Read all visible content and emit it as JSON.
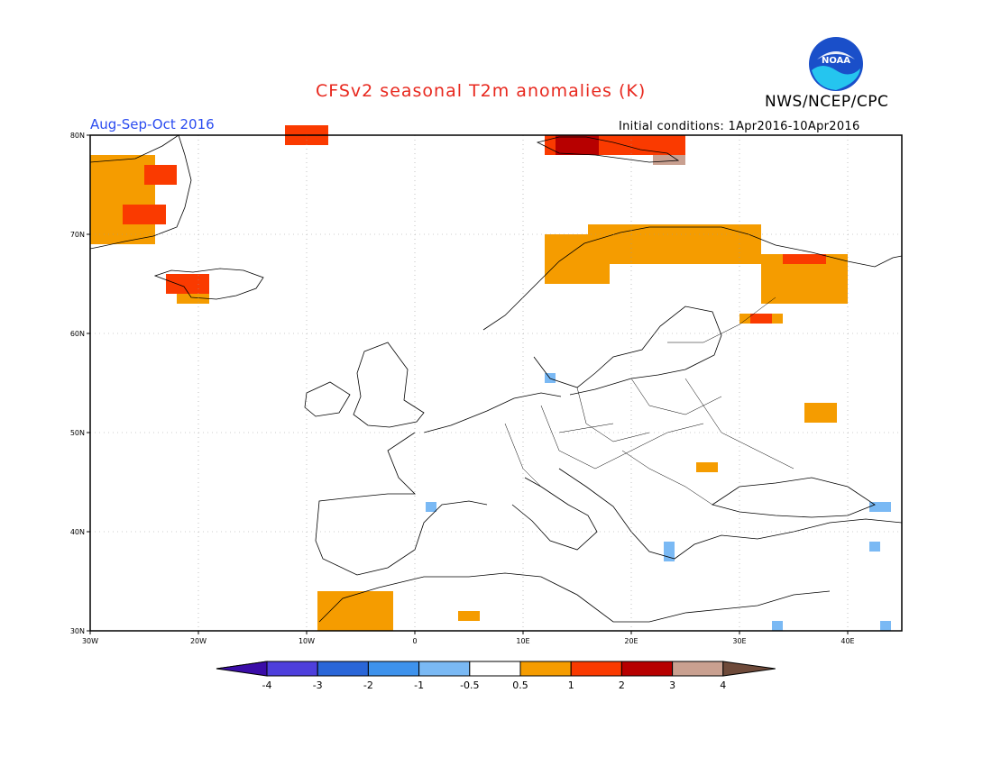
{
  "title": "CFSv2 seasonal T2m anomalies (K)",
  "agency": "NWS/NCEP/CPC",
  "season": "Aug-Sep-Oct 2016",
  "initial_conditions": "Initial conditions: 1Apr2016-10Apr2016",
  "logo_text": "NOAA",
  "logo_icon": "noaa-logo-icon",
  "axes": {
    "lat_labels": [
      "80N",
      "70N",
      "60N",
      "50N",
      "40N",
      "30N"
    ],
    "lon_labels": [
      "30W",
      "20W",
      "10W",
      "0",
      "10E",
      "20E",
      "30E",
      "40E"
    ]
  },
  "colorbar": {
    "labels": [
      "-4",
      "-3",
      "-2",
      "-1",
      "-0.5",
      "0.5",
      "1",
      "2",
      "3",
      "4"
    ],
    "colors": [
      "#3b0da8",
      "#4e3fdc",
      "#2a66d8",
      "#3e92ec",
      "#7ab9f4",
      "#ffffff",
      "#f59c00",
      "#fa3a00",
      "#b70000",
      "#c9a090",
      "#6e4a3a"
    ]
  },
  "chart_data": {
    "type": "heatmap",
    "title": "CFSv2 seasonal T2m anomalies (K)",
    "subtitle": "Aug-Sep-Oct 2016",
    "lon_range": [
      -30,
      45
    ],
    "lat_range": [
      30,
      80
    ],
    "units": "K",
    "anomaly_cells": [
      {
        "lon0": -30,
        "lon1": -24,
        "lat0": 69,
        "lat1": 78,
        "class": "0.5-1"
      },
      {
        "lon0": -27,
        "lon1": -23,
        "lat0": 71,
        "lat1": 73,
        "class": "1-2"
      },
      {
        "lon0": -25,
        "lon1": -22,
        "lat0": 75,
        "lat1": 77,
        "class": "1-2"
      },
      {
        "lon0": -23,
        "lon1": -19,
        "lat0": 64,
        "lat1": 66,
        "class": "1-2"
      },
      {
        "lon0": -22,
        "lon1": -19,
        "lat0": 63,
        "lat1": 64,
        "class": "0.5-1"
      },
      {
        "lon0": -12,
        "lon1": -8,
        "lat0": 79,
        "lat1": 81,
        "class": "1-2"
      },
      {
        "lon0": 12,
        "lon1": 25,
        "lat0": 78,
        "lat1": 80,
        "class": "1-2"
      },
      {
        "lon0": 13,
        "lon1": 17,
        "lat0": 78,
        "lat1": 80,
        "class": "2-3"
      },
      {
        "lon0": 22,
        "lon1": 25,
        "lat0": 77,
        "lat1": 78,
        "class": "3-4"
      },
      {
        "lon0": 12,
        "lon1": 18,
        "lat0": 65,
        "lat1": 70,
        "class": "0.5-1"
      },
      {
        "lon0": 16,
        "lon1": 32,
        "lat0": 67,
        "lat1": 71,
        "class": "0.5-1"
      },
      {
        "lon0": 32,
        "lon1": 40,
        "lat0": 63,
        "lat1": 68,
        "class": "0.5-1"
      },
      {
        "lon0": 34,
        "lon1": 38,
        "lat0": 67,
        "lat1": 68,
        "class": "1-2"
      },
      {
        "lon0": 30,
        "lon1": 34,
        "lat0": 61,
        "lat1": 62,
        "class": "0.5-1"
      },
      {
        "lon0": 31,
        "lon1": 33,
        "lat0": 61,
        "lat1": 62,
        "class": "1-2"
      },
      {
        "lon0": 36,
        "lon1": 39,
        "lat0": 51,
        "lat1": 53,
        "class": "0.5-1"
      },
      {
        "lon0": 26,
        "lon1": 28,
        "lat0": 46,
        "lat1": 47,
        "class": "0.5-1"
      },
      {
        "lon0": -9,
        "lon1": -2,
        "lat0": 30,
        "lat1": 34,
        "class": "0.5-1"
      },
      {
        "lon0": 4,
        "lon1": 6,
        "lat0": 31,
        "lat1": 32,
        "class": "0.5-1"
      },
      {
        "lon0": 12,
        "lon1": 13,
        "lat0": 55,
        "lat1": 56,
        "class": "-1--0.5"
      },
      {
        "lon0": 1,
        "lon1": 2,
        "lat0": 42,
        "lat1": 43,
        "class": "-1--0.5"
      },
      {
        "lon0": 23,
        "lon1": 24,
        "lat0": 37,
        "lat1": 39,
        "class": "-1--0.5"
      },
      {
        "lon0": 42,
        "lon1": 44,
        "lat0": 42,
        "lat1": 43,
        "class": "-1--0.5"
      },
      {
        "lon0": 42,
        "lon1": 43,
        "lat0": 38,
        "lat1": 39,
        "class": "-1--0.5"
      },
      {
        "lon0": 33,
        "lon1": 34,
        "lat0": 30,
        "lat1": 31,
        "class": "-1--0.5"
      },
      {
        "lon0": 43,
        "lon1": 44,
        "lat0": 30,
        "lat1": 31,
        "class": "-1--0.5"
      }
    ]
  }
}
